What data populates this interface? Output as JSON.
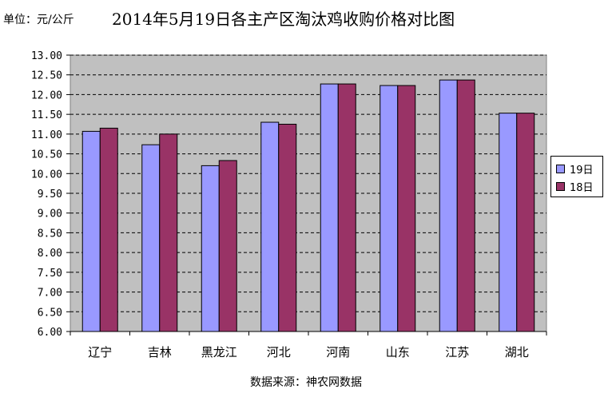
{
  "header": {
    "unit": "单位：元/公斤",
    "title": "2014年5月19日各主产区淘汰鸡收购价格对比图"
  },
  "footer": {
    "source": "数据来源：神农网数据"
  },
  "colors": {
    "plot_bg": "#c0c0c0",
    "series_19": "#9999ff",
    "series_18": "#993366"
  },
  "chart_data": {
    "type": "bar",
    "title": "2014年5月19日各主产区淘汰鸡收购价格对比图",
    "xlabel": "",
    "ylabel": "单位：元/公斤",
    "ylim": [
      6,
      13
    ],
    "yticks": [
      "6.00",
      "6.50",
      "7.00",
      "7.50",
      "8.00",
      "8.50",
      "9.00",
      "9.50",
      "10.00",
      "10.50",
      "11.00",
      "11.50",
      "12.00",
      "12.50",
      "13.00"
    ],
    "grid": true,
    "legend_position": "right",
    "categories": [
      "辽宁",
      "吉林",
      "黑龙江",
      "河北",
      "河南",
      "山东",
      "江苏",
      "湖北"
    ],
    "series": [
      {
        "name": "19日",
        "values": [
          11.07,
          10.73,
          10.2,
          11.3,
          12.27,
          12.23,
          12.37,
          11.53
        ]
      },
      {
        "name": "18日",
        "values": [
          11.15,
          11.0,
          10.33,
          11.25,
          12.27,
          12.23,
          12.37,
          11.53
        ]
      }
    ]
  }
}
